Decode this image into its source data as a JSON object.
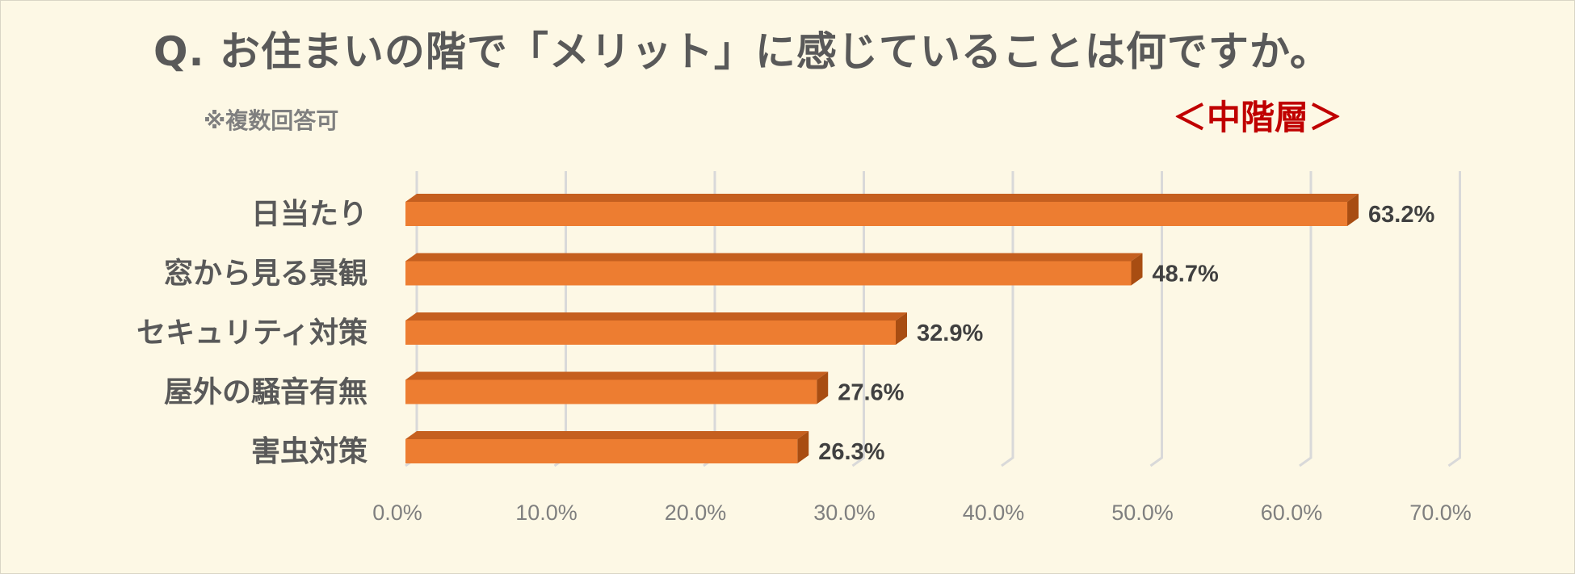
{
  "title": "Q. お住まいの階で「メリット」に感じていることは何ですか。",
  "note": "※複数回答可",
  "badge": "＜中階層＞",
  "colors": {
    "bar_front": "#ed7d31",
    "bar_top": "#c55f1f",
    "bar_side": "#a84d12",
    "grid": "#d9d9d9"
  },
  "chart_data": {
    "type": "bar",
    "orientation": "horizontal",
    "categories": [
      "日当たり",
      "窓から見る景観",
      "セキュリティ対策",
      "屋外の騒音有無",
      "害虫対策"
    ],
    "values": [
      63.2,
      48.7,
      32.9,
      27.6,
      26.3
    ],
    "value_labels": [
      "63.2%",
      "48.7%",
      "32.9%",
      "27.6%",
      "26.3%"
    ],
    "xlim": [
      0,
      70
    ],
    "xticks": [
      0,
      10,
      20,
      30,
      40,
      50,
      60,
      70
    ],
    "xtick_labels": [
      "0.0%",
      "10.0%",
      "20.0%",
      "30.0%",
      "40.0%",
      "50.0%",
      "60.0%",
      "70.0%"
    ],
    "grid": true,
    "style": "3d"
  }
}
